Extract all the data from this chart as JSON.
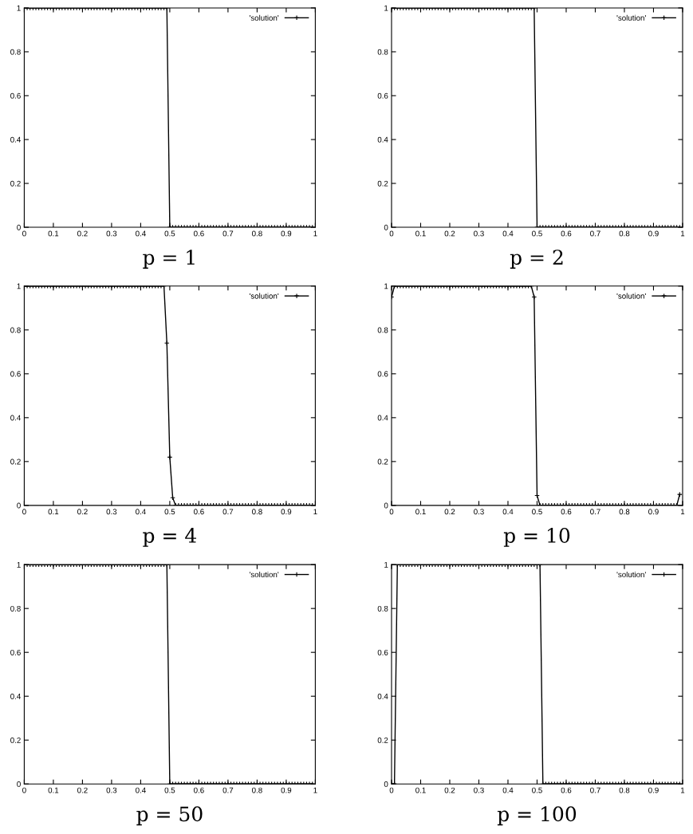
{
  "chart_data": [
    {
      "type": "line",
      "title": "p = 1",
      "x": [
        0,
        0.01,
        0.02,
        0.03,
        0.04,
        0.05,
        0.06,
        0.07,
        0.08,
        0.09,
        0.1,
        0.11,
        0.12,
        0.13,
        0.14,
        0.15,
        0.16,
        0.17,
        0.18,
        0.19,
        0.2,
        0.21,
        0.22,
        0.23,
        0.24,
        0.25,
        0.26,
        0.27,
        0.28,
        0.29,
        0.3,
        0.31,
        0.32,
        0.33,
        0.34,
        0.35,
        0.36,
        0.37,
        0.38,
        0.39,
        0.4,
        0.41,
        0.42,
        0.43,
        0.44,
        0.45,
        0.46,
        0.47,
        0.48,
        0.49,
        0.5,
        0.51,
        0.52,
        0.53,
        0.54,
        0.55,
        0.56,
        0.57,
        0.58,
        0.59,
        0.6,
        0.61,
        0.62,
        0.63,
        0.64,
        0.65,
        0.66,
        0.67,
        0.68,
        0.69,
        0.7,
        0.71,
        0.72,
        0.73,
        0.74,
        0.75,
        0.76,
        0.77,
        0.78,
        0.79,
        0.8,
        0.81,
        0.82,
        0.83,
        0.84,
        0.85,
        0.86,
        0.87,
        0.88,
        0.89,
        0.9,
        0.91,
        0.92,
        0.93,
        0.94,
        0.95,
        0.96,
        0.97,
        0.98,
        0.99
      ],
      "series": [
        {
          "name": "'solution'",
          "color": "#000000",
          "values": [
            1,
            1,
            1,
            1,
            1,
            1,
            1,
            1,
            1,
            1,
            1,
            1,
            1,
            1,
            1,
            1,
            1,
            1,
            1,
            1,
            1,
            1,
            1,
            1,
            1,
            1,
            1,
            1,
            1,
            1,
            1,
            1,
            1,
            1,
            1,
            1,
            1,
            1,
            1,
            1,
            1,
            1,
            1,
            1,
            1,
            1,
            1,
            1,
            1,
            1,
            0,
            0,
            0,
            0,
            0,
            0,
            0,
            0,
            0,
            0,
            0,
            0,
            0,
            0,
            0,
            0,
            0,
            0,
            0,
            0,
            0,
            0,
            0,
            0,
            0,
            0,
            0,
            0,
            0,
            0,
            0,
            0,
            0,
            0,
            0,
            0,
            0,
            0,
            0,
            0,
            0,
            0,
            0,
            0,
            0,
            0,
            0,
            0,
            0,
            0
          ]
        }
      ],
      "xlim": [
        0,
        1
      ],
      "ylim": [
        0,
        1
      ],
      "xticks": [
        0,
        0.1,
        0.2,
        0.3,
        0.4,
        0.5,
        0.6,
        0.7,
        0.8,
        0.9,
        1
      ],
      "yticks": [
        0,
        0.2,
        0.4,
        0.6,
        0.8,
        1
      ],
      "marker": "cross",
      "line_style": "solid",
      "legend": "top right"
    },
    {
      "type": "line",
      "title": "p = 2",
      "x": [
        0,
        0.01,
        0.02,
        0.03,
        0.04,
        0.05,
        0.06,
        0.07,
        0.08,
        0.09,
        0.1,
        0.11,
        0.12,
        0.13,
        0.14,
        0.15,
        0.16,
        0.17,
        0.18,
        0.19,
        0.2,
        0.21,
        0.22,
        0.23,
        0.24,
        0.25,
        0.26,
        0.27,
        0.28,
        0.29,
        0.3,
        0.31,
        0.32,
        0.33,
        0.34,
        0.35,
        0.36,
        0.37,
        0.38,
        0.39,
        0.4,
        0.41,
        0.42,
        0.43,
        0.44,
        0.45,
        0.46,
        0.47,
        0.48,
        0.49,
        0.5,
        0.51,
        0.52,
        0.53,
        0.54,
        0.55,
        0.56,
        0.57,
        0.58,
        0.59,
        0.6,
        0.61,
        0.62,
        0.63,
        0.64,
        0.65,
        0.66,
        0.67,
        0.68,
        0.69,
        0.7,
        0.71,
        0.72,
        0.73,
        0.74,
        0.75,
        0.76,
        0.77,
        0.78,
        0.79,
        0.8,
        0.81,
        0.82,
        0.83,
        0.84,
        0.85,
        0.86,
        0.87,
        0.88,
        0.89,
        0.9,
        0.91,
        0.92,
        0.93,
        0.94,
        0.95,
        0.96,
        0.97,
        0.98,
        0.99
      ],
      "series": [
        {
          "name": "'solution'",
          "color": "#000000",
          "values": [
            1,
            1,
            1,
            1,
            1,
            1,
            1,
            1,
            1,
            1,
            1,
            1,
            1,
            1,
            1,
            1,
            1,
            1,
            1,
            1,
            1,
            1,
            1,
            1,
            1,
            1,
            1,
            1,
            1,
            1,
            1,
            1,
            1,
            1,
            1,
            1,
            1,
            1,
            1,
            1,
            1,
            1,
            1,
            1,
            1,
            1,
            1,
            1,
            1,
            1,
            0,
            0,
            0,
            0,
            0,
            0,
            0,
            0,
            0,
            0,
            0,
            0,
            0,
            0,
            0,
            0,
            0,
            0,
            0,
            0,
            0,
            0,
            0,
            0,
            0,
            0,
            0,
            0,
            0,
            0,
            0,
            0,
            0,
            0,
            0,
            0,
            0,
            0,
            0,
            0,
            0,
            0,
            0,
            0,
            0,
            0,
            0,
            0,
            0,
            0
          ]
        }
      ],
      "xlim": [
        0,
        1
      ],
      "ylim": [
        0,
        1
      ],
      "xticks": [
        0,
        0.1,
        0.2,
        0.3,
        0.4,
        0.5,
        0.6,
        0.7,
        0.8,
        0.9,
        1
      ],
      "yticks": [
        0,
        0.2,
        0.4,
        0.6,
        0.8,
        1
      ],
      "marker": "cross",
      "line_style": "solid",
      "legend": "top right"
    },
    {
      "type": "line",
      "title": "p = 4",
      "x": [
        0,
        0.01,
        0.02,
        0.03,
        0.04,
        0.05,
        0.06,
        0.07,
        0.08,
        0.09,
        0.1,
        0.11,
        0.12,
        0.13,
        0.14,
        0.15,
        0.16,
        0.17,
        0.18,
        0.19,
        0.2,
        0.21,
        0.22,
        0.23,
        0.24,
        0.25,
        0.26,
        0.27,
        0.28,
        0.29,
        0.3,
        0.31,
        0.32,
        0.33,
        0.34,
        0.35,
        0.36,
        0.37,
        0.38,
        0.39,
        0.4,
        0.41,
        0.42,
        0.43,
        0.44,
        0.45,
        0.46,
        0.47,
        0.48,
        0.49,
        0.5,
        0.51,
        0.52,
        0.53,
        0.54,
        0.55,
        0.56,
        0.57,
        0.58,
        0.59,
        0.6,
        0.61,
        0.62,
        0.63,
        0.64,
        0.65,
        0.66,
        0.67,
        0.68,
        0.69,
        0.7,
        0.71,
        0.72,
        0.73,
        0.74,
        0.75,
        0.76,
        0.77,
        0.78,
        0.79,
        0.8,
        0.81,
        0.82,
        0.83,
        0.84,
        0.85,
        0.86,
        0.87,
        0.88,
        0.89,
        0.9,
        0.91,
        0.92,
        0.93,
        0.94,
        0.95,
        0.96,
        0.97,
        0.98,
        0.99
      ],
      "series": [
        {
          "name": "'solution'",
          "color": "#000000",
          "values": [
            1,
            1,
            1,
            1,
            1,
            1,
            1,
            1,
            1,
            1,
            1,
            1,
            1,
            1,
            1,
            1,
            1,
            1,
            1,
            1,
            1,
            1,
            1,
            1,
            1,
            1,
            1,
            1,
            1,
            1,
            1,
            1,
            1,
            1,
            1,
            1,
            1,
            1,
            1,
            1,
            1,
            1,
            1,
            1,
            1,
            1,
            1,
            1,
            1,
            0.74,
            0.22,
            0.035,
            0,
            0,
            0,
            0,
            0,
            0,
            0,
            0,
            0,
            0,
            0,
            0,
            0,
            0,
            0,
            0,
            0,
            0,
            0,
            0,
            0,
            0,
            0,
            0,
            0,
            0,
            0,
            0,
            0,
            0,
            0,
            0,
            0,
            0,
            0,
            0,
            0,
            0,
            0,
            0,
            0,
            0,
            0,
            0,
            0,
            0,
            0,
            0
          ]
        }
      ],
      "xlim": [
        0,
        1
      ],
      "ylim": [
        0,
        1
      ],
      "xticks": [
        0,
        0.1,
        0.2,
        0.3,
        0.4,
        0.5,
        0.6,
        0.7,
        0.8,
        0.9,
        1
      ],
      "yticks": [
        0,
        0.2,
        0.4,
        0.6,
        0.8,
        1
      ],
      "marker": "cross",
      "line_style": "solid",
      "legend": "top right"
    },
    {
      "type": "line",
      "title": "p = 10",
      "x": [
        0,
        0.01,
        0.02,
        0.03,
        0.04,
        0.05,
        0.06,
        0.07,
        0.08,
        0.09,
        0.1,
        0.11,
        0.12,
        0.13,
        0.14,
        0.15,
        0.16,
        0.17,
        0.18,
        0.19,
        0.2,
        0.21,
        0.22,
        0.23,
        0.24,
        0.25,
        0.26,
        0.27,
        0.28,
        0.29,
        0.3,
        0.31,
        0.32,
        0.33,
        0.34,
        0.35,
        0.36,
        0.37,
        0.38,
        0.39,
        0.4,
        0.41,
        0.42,
        0.43,
        0.44,
        0.45,
        0.46,
        0.47,
        0.48,
        0.49,
        0.5,
        0.51,
        0.52,
        0.53,
        0.54,
        0.55,
        0.56,
        0.57,
        0.58,
        0.59,
        0.6,
        0.61,
        0.62,
        0.63,
        0.64,
        0.65,
        0.66,
        0.67,
        0.68,
        0.69,
        0.7,
        0.71,
        0.72,
        0.73,
        0.74,
        0.75,
        0.76,
        0.77,
        0.78,
        0.79,
        0.8,
        0.81,
        0.82,
        0.83,
        0.84,
        0.85,
        0.86,
        0.87,
        0.88,
        0.89,
        0.9,
        0.91,
        0.92,
        0.93,
        0.94,
        0.95,
        0.96,
        0.97,
        0.98,
        0.99
      ],
      "series": [
        {
          "name": "'solution'",
          "color": "#000000",
          "values": [
            0.95,
            1,
            1,
            1,
            1,
            1,
            1,
            1,
            1,
            1,
            1,
            1,
            1,
            1,
            1,
            1,
            1,
            1,
            1,
            1,
            1,
            1,
            1,
            1,
            1,
            1,
            1,
            1,
            1,
            1,
            1,
            1,
            1,
            1,
            1,
            1,
            1,
            1,
            1,
            1,
            1,
            1,
            1,
            1,
            1,
            1,
            1,
            1,
            1,
            0.95,
            0.045,
            0,
            0,
            0,
            0,
            0,
            0,
            0,
            0,
            0,
            0,
            0,
            0,
            0,
            0,
            0,
            0,
            0,
            0,
            0,
            0,
            0,
            0,
            0,
            0,
            0,
            0,
            0,
            0,
            0,
            0,
            0,
            0,
            0,
            0,
            0,
            0,
            0,
            0,
            0,
            0,
            0,
            0,
            0,
            0,
            0,
            0,
            0,
            0,
            0.05
          ]
        }
      ],
      "xlim": [
        0,
        1
      ],
      "ylim": [
        0,
        1
      ],
      "xticks": [
        0,
        0.1,
        0.2,
        0.3,
        0.4,
        0.5,
        0.6,
        0.7,
        0.8,
        0.9,
        1
      ],
      "yticks": [
        0,
        0.2,
        0.4,
        0.6,
        0.8,
        1
      ],
      "marker": "cross",
      "line_style": "solid",
      "legend": "top right"
    },
    {
      "type": "line",
      "title": "p = 50",
      "x": [
        0,
        0.01,
        0.02,
        0.03,
        0.04,
        0.05,
        0.06,
        0.07,
        0.08,
        0.09,
        0.1,
        0.11,
        0.12,
        0.13,
        0.14,
        0.15,
        0.16,
        0.17,
        0.18,
        0.19,
        0.2,
        0.21,
        0.22,
        0.23,
        0.24,
        0.25,
        0.26,
        0.27,
        0.28,
        0.29,
        0.3,
        0.31,
        0.32,
        0.33,
        0.34,
        0.35,
        0.36,
        0.37,
        0.38,
        0.39,
        0.4,
        0.41,
        0.42,
        0.43,
        0.44,
        0.45,
        0.46,
        0.47,
        0.48,
        0.49,
        0.5,
        0.51,
        0.52,
        0.53,
        0.54,
        0.55,
        0.56,
        0.57,
        0.58,
        0.59,
        0.6,
        0.61,
        0.62,
        0.63,
        0.64,
        0.65,
        0.66,
        0.67,
        0.68,
        0.69,
        0.7,
        0.71,
        0.72,
        0.73,
        0.74,
        0.75,
        0.76,
        0.77,
        0.78,
        0.79,
        0.8,
        0.81,
        0.82,
        0.83,
        0.84,
        0.85,
        0.86,
        0.87,
        0.88,
        0.89,
        0.9,
        0.91,
        0.92,
        0.93,
        0.94,
        0.95,
        0.96,
        0.97,
        0.98,
        0.99
      ],
      "series": [
        {
          "name": "'solution'",
          "color": "#000000",
          "values": [
            1,
            1,
            1,
            1,
            1,
            1,
            1,
            1,
            1,
            1,
            1,
            1,
            1,
            1,
            1,
            1,
            1,
            1,
            1,
            1,
            1,
            1,
            1,
            1,
            1,
            1,
            1,
            1,
            1,
            1,
            1,
            1,
            1,
            1,
            1,
            1,
            1,
            1,
            1,
            1,
            1,
            1,
            1,
            1,
            1,
            1,
            1,
            1,
            1,
            1,
            0,
            0,
            0,
            0,
            0,
            0,
            0,
            0,
            0,
            0,
            0,
            0,
            0,
            0,
            0,
            0,
            0,
            0,
            0,
            0,
            0,
            0,
            0,
            0,
            0,
            0,
            0,
            0,
            0,
            0,
            0,
            0,
            0,
            0,
            0,
            0,
            0,
            0,
            0,
            0,
            0,
            0,
            0,
            0,
            0,
            0,
            0,
            0,
            0,
            0
          ]
        }
      ],
      "xlim": [
        0,
        1
      ],
      "ylim": [
        0,
        1
      ],
      "xticks": [
        0,
        0.1,
        0.2,
        0.3,
        0.4,
        0.5,
        0.6,
        0.7,
        0.8,
        0.9,
        1
      ],
      "yticks": [
        0,
        0.2,
        0.4,
        0.6,
        0.8,
        1
      ],
      "marker": "cross",
      "line_style": "solid",
      "legend": "top right"
    },
    {
      "type": "line",
      "title": "p = 100",
      "x": [
        0,
        0.01,
        0.02,
        0.03,
        0.04,
        0.05,
        0.06,
        0.07,
        0.08,
        0.09,
        0.1,
        0.11,
        0.12,
        0.13,
        0.14,
        0.15,
        0.16,
        0.17,
        0.18,
        0.19,
        0.2,
        0.21,
        0.22,
        0.23,
        0.24,
        0.25,
        0.26,
        0.27,
        0.28,
        0.29,
        0.3,
        0.31,
        0.32,
        0.33,
        0.34,
        0.35,
        0.36,
        0.37,
        0.38,
        0.39,
        0.4,
        0.41,
        0.42,
        0.43,
        0.44,
        0.45,
        0.46,
        0.47,
        0.48,
        0.49,
        0.5,
        0.51,
        0.52,
        0.53,
        0.54,
        0.55,
        0.56,
        0.57,
        0.58,
        0.59,
        0.6,
        0.61,
        0.62,
        0.63,
        0.64,
        0.65,
        0.66,
        0.67,
        0.68,
        0.69,
        0.7,
        0.71,
        0.72,
        0.73,
        0.74,
        0.75,
        0.76,
        0.77,
        0.78,
        0.79,
        0.8,
        0.81,
        0.82,
        0.83,
        0.84,
        0.85,
        0.86,
        0.87,
        0.88,
        0.89,
        0.9,
        0.91,
        0.92,
        0.93,
        0.94,
        0.95,
        0.96,
        0.97,
        0.98,
        0.99
      ],
      "series": [
        {
          "name": "'solution'",
          "color": "#000000",
          "values": [
            0,
            0,
            1,
            1,
            1,
            1,
            1,
            1,
            1,
            1,
            1,
            1,
            1,
            1,
            1,
            1,
            1,
            1,
            1,
            1,
            1,
            1,
            1,
            1,
            1,
            1,
            1,
            1,
            1,
            1,
            1,
            1,
            1,
            1,
            1,
            1,
            1,
            1,
            1,
            1,
            1,
            1,
            1,
            1,
            1,
            1,
            1,
            1,
            1,
            1,
            1,
            1,
            0,
            0,
            0,
            0,
            0,
            0,
            0,
            0,
            0,
            0,
            0,
            0,
            0,
            0,
            0,
            0,
            0,
            0,
            0,
            0,
            0,
            0,
            0,
            0,
            0,
            0,
            0,
            0,
            0,
            0,
            0,
            0,
            0,
            0,
            0,
            0,
            0,
            0,
            0,
            0,
            0,
            0,
            0,
            0,
            0,
            0,
            0,
            0
          ]
        }
      ],
      "xlim": [
        0,
        1
      ],
      "ylim": [
        0,
        1
      ],
      "xticks": [
        0,
        0.1,
        0.2,
        0.3,
        0.4,
        0.5,
        0.6,
        0.7,
        0.8,
        0.9,
        1
      ],
      "yticks": [
        0,
        0.2,
        0.4,
        0.6,
        0.8,
        1
      ],
      "marker": "cross",
      "line_style": "solid",
      "legend": "top right"
    }
  ]
}
